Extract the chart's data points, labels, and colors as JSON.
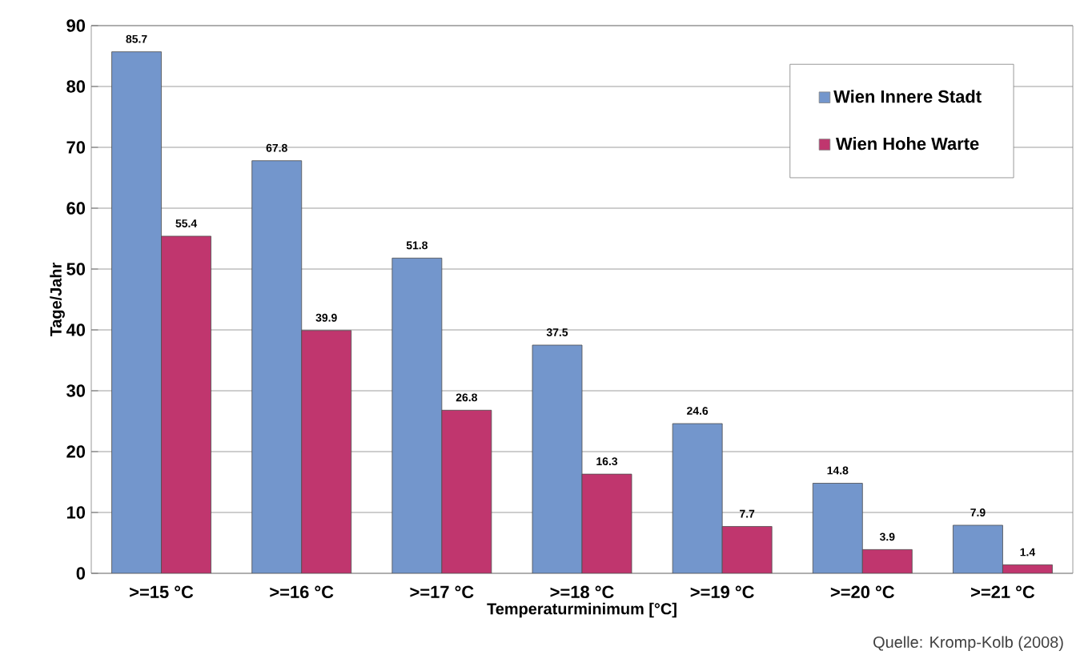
{
  "chart_data": {
    "type": "bar",
    "xlabel": "Temperaturminimum [°C]",
    "ylabel": "Tage/Jahr",
    "categories": [
      ">=15 °C",
      ">=16 °C",
      ">=17 °C",
      ">=18 °C",
      ">=19 °C",
      ">=20 °C",
      ">=21 °C"
    ],
    "series": [
      {
        "name": "Wien Innere Stadt",
        "color": "#7396cc",
        "values": [
          85.7,
          67.8,
          51.8,
          37.5,
          24.6,
          14.8,
          7.9
        ]
      },
      {
        "name": "Wien Hohe Warte",
        "color": "#c0366e",
        "values": [
          55.4,
          39.9,
          26.8,
          16.3,
          7.7,
          3.9,
          1.4
        ]
      }
    ],
    "ylim": [
      0,
      90
    ],
    "yticks": [
      0,
      10,
      20,
      30,
      40,
      50,
      60,
      70,
      80,
      90
    ],
    "grid": "y",
    "legend": "top right",
    "data_labels": true,
    "annotations": [
      "Quelle: Kromp-Kolb (2008)"
    ]
  }
}
